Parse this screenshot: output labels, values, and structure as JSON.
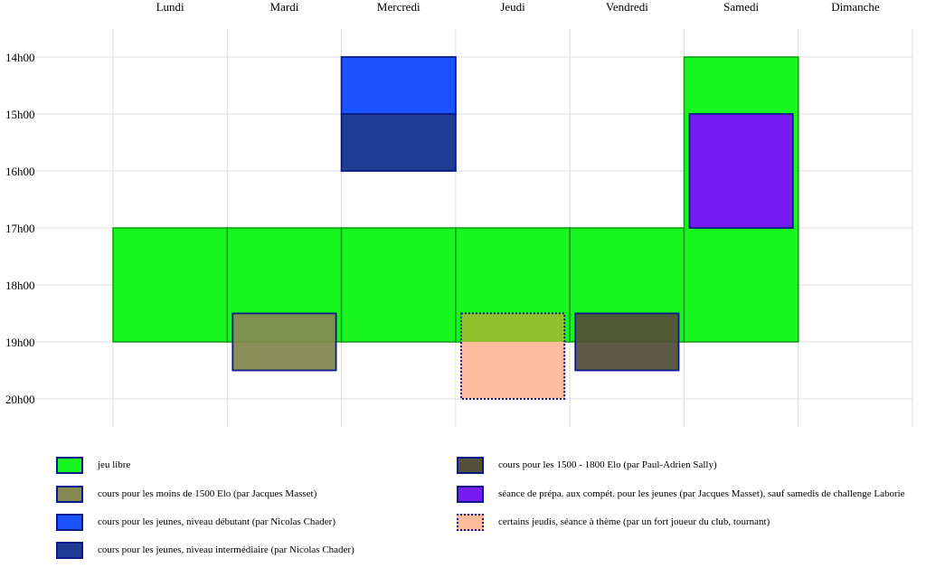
{
  "chart_data": {
    "type": "schedule",
    "days": [
      "Lundi",
      "Mardi",
      "Mercredi",
      "Jeudi",
      "Vendredi",
      "Samedi",
      "Dimanche"
    ],
    "hours": [
      "14h00",
      "15h00",
      "16h00",
      "17h00",
      "18h00",
      "19h00",
      "20h00"
    ],
    "hour_start": 14,
    "hour_end": 20,
    "grid": true,
    "categories": [
      {
        "id": "libre",
        "label": "jeu libre",
        "color": "#19f51f",
        "border": "solid"
      },
      {
        "id": "masset1500",
        "label": "cours pour les moins de 1500 Elo (par Jacques Masset)",
        "color": "#848951",
        "border": "solid"
      },
      {
        "id": "debutant",
        "label": "cours pour les jeunes, niveau débutant (par Nicolas Chader)",
        "color": "#1b54ff",
        "border": "solid"
      },
      {
        "id": "intermediaire",
        "label": "cours pour les jeunes, niveau intermédiaire (par Nicolas Chader)",
        "color": "#1d3c92",
        "border": "solid"
      },
      {
        "id": "sally",
        "label": "cours pour les 1500 - 1800 Elo (par Paul-Adrien Sally)",
        "color": "#535138",
        "border": "solid"
      },
      {
        "id": "prepa",
        "label": "séance de prépa. aux compét. pour les jeunes (par Jacques Masset), sauf samedis de challenge Laborie",
        "color": "#771bf0",
        "border": "solid"
      },
      {
        "id": "theme",
        "label": "certains jeudis, séance à thème (par un fort joueur du club, tournant)",
        "color": "#ffbc9c",
        "border": "dotted"
      }
    ],
    "events": [
      {
        "day": 0,
        "start": 17,
        "end": 19,
        "category": "libre"
      },
      {
        "day": 1,
        "start": 17,
        "end": 19,
        "category": "libre"
      },
      {
        "day": 2,
        "start": 17,
        "end": 19,
        "category": "libre"
      },
      {
        "day": 3,
        "start": 17,
        "end": 19,
        "category": "libre"
      },
      {
        "day": 4,
        "start": 17,
        "end": 19,
        "category": "libre"
      },
      {
        "day": 5,
        "start": 14,
        "end": 19,
        "category": "libre"
      },
      {
        "day": 2,
        "start": 14,
        "end": 15,
        "category": "debutant"
      },
      {
        "day": 2,
        "start": 15,
        "end": 16,
        "category": "intermediaire"
      },
      {
        "day": 5,
        "start": 15,
        "end": 17,
        "category": "prepa",
        "inset": true
      },
      {
        "day": 1,
        "start": 18.5,
        "end": 19.5,
        "category": "masset1500",
        "inset": true
      },
      {
        "day": 4,
        "start": 18.5,
        "end": 19.5,
        "category": "sally",
        "inset": true
      },
      {
        "day": 3,
        "start": 18.5,
        "end": 20,
        "category": "theme",
        "inset": true
      }
    ]
  }
}
